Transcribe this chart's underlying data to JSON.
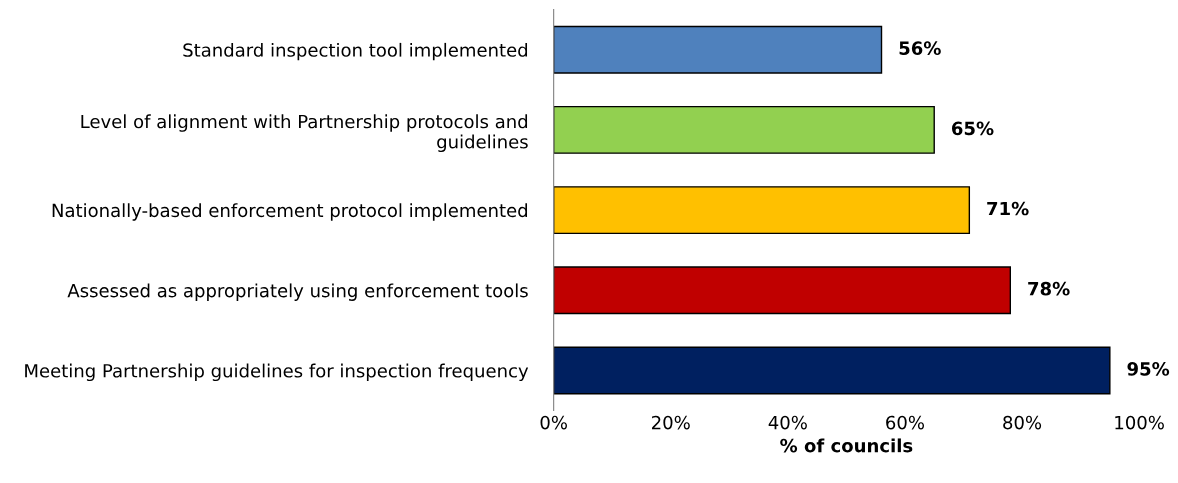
{
  "chart_data": {
    "type": "bar",
    "orientation": "horizontal",
    "xlabel": "% of councils",
    "categories": [
      "Standard inspection tool implemented",
      "Level of alignment with Partnership protocols and\nguidelines",
      "Nationally-based enforcement protocol implemented",
      "Assessed as appropriately using enforcement tools",
      "Meeting Partnership guidelines for inspection frequency"
    ],
    "values": [
      56,
      65,
      71,
      78,
      95
    ],
    "colors": [
      "#4f81bd",
      "#92d050",
      "#ffc000",
      "#c00000",
      "#002060"
    ],
    "value_labels": [
      "56%",
      "65%",
      "71%",
      "78%",
      "95%"
    ],
    "xlim": [
      0,
      100
    ],
    "xticks": [
      {
        "value": 0,
        "label": "0%"
      },
      {
        "value": 20,
        "label": "20%"
      },
      {
        "value": 40,
        "label": "40%"
      },
      {
        "value": 60,
        "label": "60%"
      },
      {
        "value": 80,
        "label": "80%"
      },
      {
        "value": 100,
        "label": "100%"
      }
    ],
    "grid": false,
    "legend": false
  }
}
